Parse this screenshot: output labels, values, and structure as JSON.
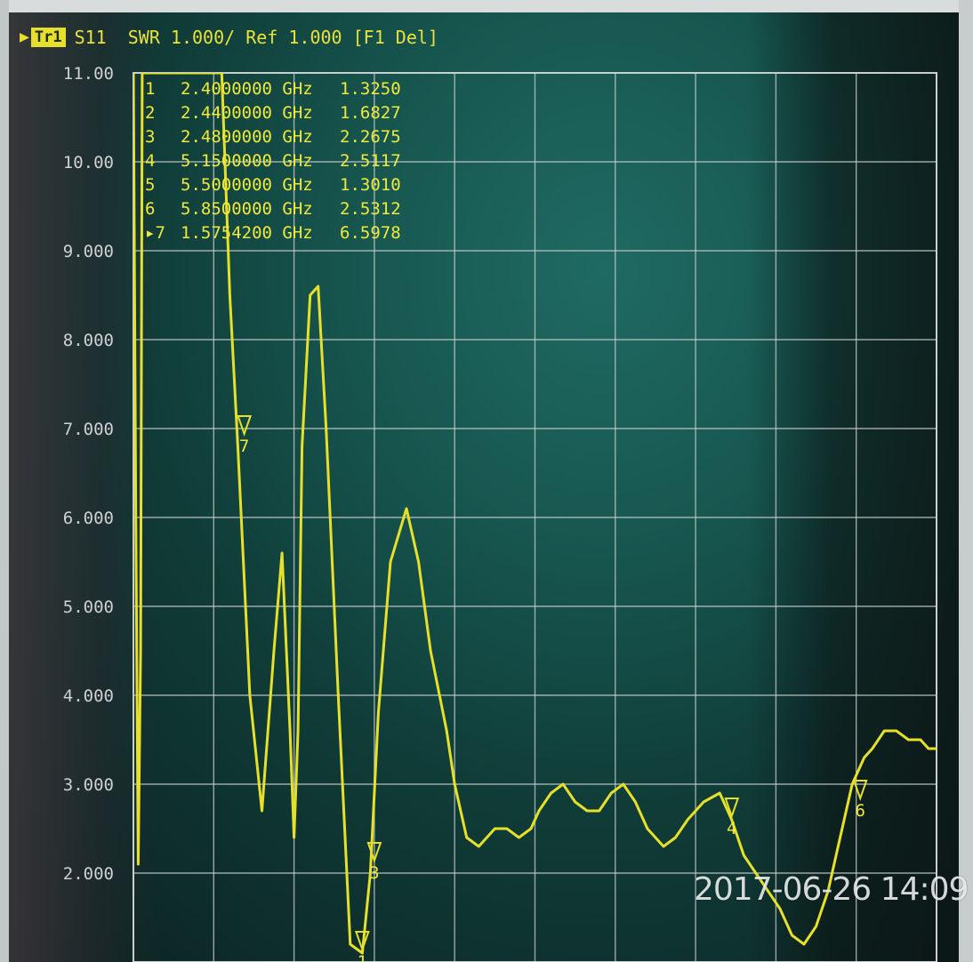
{
  "header": {
    "arrow_icon": "right-triangle-icon",
    "trace_tag": "Tr1",
    "text": "S11  SWR 1.000/ Ref 1.000 [F1 Del]"
  },
  "timestamp": "2017-06-26 14:09",
  "colors": {
    "trace": "#e6e02a",
    "grid": "#c9cfcf",
    "background": "#175750"
  },
  "chart_data": {
    "type": "line",
    "title": "",
    "xlabel": "",
    "ylabel": "",
    "ylim": [
      1.0,
      11.0
    ],
    "yticks": [
      "11.00",
      "10.00",
      "9.000",
      "8.000",
      "7.000",
      "6.000",
      "5.000",
      "4.000",
      "3.000",
      "2.000"
    ],
    "grid": true,
    "x_divisions": 10,
    "y_divisions": 10,
    "markers": [
      {
        "num": "1",
        "freq": "2.4000000 GHz",
        "value": "1.3250"
      },
      {
        "num": "2",
        "freq": "2.4400000 GHz",
        "value": "1.6827"
      },
      {
        "num": "3",
        "freq": "2.4800000 GHz",
        "value": "2.2675"
      },
      {
        "num": "4",
        "freq": "5.1500000 GHz",
        "value": "2.5117"
      },
      {
        "num": "5",
        "freq": "5.5000000 GHz",
        "value": "1.3010"
      },
      {
        "num": "6",
        "freq": "5.8500000 GHz",
        "value": "2.5312"
      },
      {
        "num": "7",
        "freq": "1.5754200 GHz",
        "value": "6.5978",
        "active": true
      }
    ],
    "series": [
      {
        "x_div": [
          0.0,
          0.03,
          0.06,
          0.09,
          0.11,
          0.15,
          0.2,
          0.35,
          0.55,
          0.8,
          1.0,
          1.1,
          1.2,
          1.3,
          1.45,
          1.6,
          1.75,
          1.85,
          1.95,
          2.0,
          2.05,
          2.1,
          2.2,
          2.3,
          2.4,
          2.55,
          2.7,
          2.85,
          2.95,
          3.05,
          3.2,
          3.4,
          3.55,
          3.7,
          3.9,
          4.0,
          4.15,
          4.3,
          4.5,
          4.65,
          4.8,
          4.95,
          5.05,
          5.2,
          5.35,
          5.5,
          5.65,
          5.8,
          5.95,
          6.1,
          6.25,
          6.4,
          6.6,
          6.75,
          6.9,
          7.1,
          7.3,
          7.45,
          7.6,
          7.75,
          7.9,
          8.05,
          8.2,
          8.35,
          8.5,
          8.65,
          8.8,
          8.95,
          9.1,
          9.2,
          9.35,
          9.5,
          9.65,
          9.8,
          9.9,
          10.0
        ],
        "values": [
          11.0,
          6.0,
          2.1,
          4.5,
          11.0,
          11.0,
          11.0,
          11.0,
          11.0,
          11.0,
          11.0,
          11.0,
          8.5,
          6.8,
          4.0,
          2.7,
          4.5,
          5.6,
          3.6,
          2.4,
          3.6,
          6.8,
          8.5,
          8.6,
          7.0,
          4.0,
          1.2,
          1.1,
          2.0,
          3.8,
          5.5,
          6.1,
          5.5,
          4.5,
          3.6,
          3.0,
          2.4,
          2.3,
          2.5,
          2.5,
          2.4,
          2.5,
          2.7,
          2.9,
          3.0,
          2.8,
          2.7,
          2.7,
          2.9,
          3.0,
          2.8,
          2.5,
          2.3,
          2.4,
          2.6,
          2.8,
          2.9,
          2.6,
          2.2,
          2.0,
          1.8,
          1.6,
          1.3,
          1.2,
          1.4,
          1.8,
          2.4,
          3.0,
          3.3,
          3.4,
          3.6,
          3.6,
          3.5,
          3.5,
          3.4,
          3.4
        ]
      }
    ],
    "marker_positions_div": [
      {
        "label": "1",
        "x_div": 2.85,
        "value": 1.1
      },
      {
        "label": "3",
        "x_div": 3.0,
        "value": 2.1
      },
      {
        "label": "4",
        "x_div": 7.45,
        "value": 2.6
      },
      {
        "label": "6",
        "x_div": 9.05,
        "value": 2.8
      },
      {
        "label": "7",
        "x_div": 1.38,
        "value": 6.9
      }
    ]
  }
}
